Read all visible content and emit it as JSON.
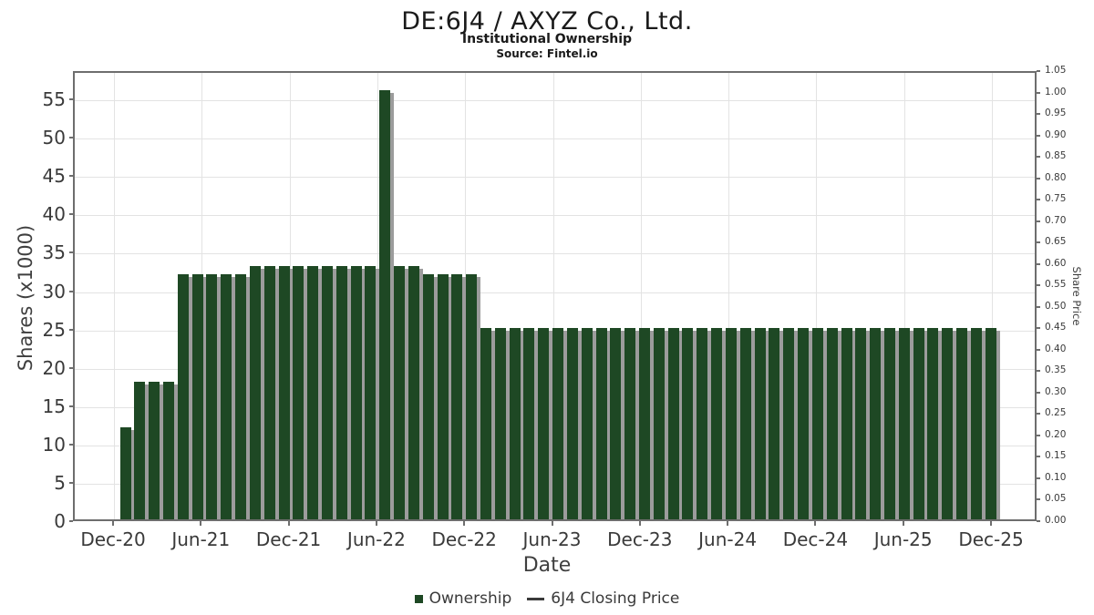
{
  "header": {
    "title": "DE:6J4 / AXYZ Co., Ltd.",
    "subtitle": "Institutional Ownership",
    "source": "Source: Fintel.io"
  },
  "axes": {
    "x_label": "Date",
    "y_left_label": "Shares (x1000)",
    "y_right_label": "Share Price",
    "x_ticks": [
      "Dec-20",
      "Jun-21",
      "Dec-21",
      "Jun-22",
      "Dec-22",
      "Jun-23",
      "Dec-23",
      "Jun-24",
      "Dec-24",
      "Jun-25",
      "Dec-25"
    ],
    "y_left_ticks": [
      0,
      5,
      10,
      15,
      20,
      25,
      30,
      35,
      40,
      45,
      50,
      55
    ],
    "y_right_ticks": [
      "0.00",
      "0.05",
      "0.10",
      "0.15",
      "0.20",
      "0.25",
      "0.30",
      "0.35",
      "0.40",
      "0.45",
      "0.50",
      "0.55",
      "0.60",
      "0.65",
      "0.70",
      "0.75",
      "0.80",
      "0.85",
      "0.90",
      "0.95",
      "1.00",
      "1.05"
    ]
  },
  "legend": {
    "ownership_label": "Ownership",
    "price_label": "6J4 Closing Price"
  },
  "colors": {
    "bar": "#1e4824",
    "bar_shadow": "#9c9c9c",
    "grid": "#e3e3e3",
    "border": "#6e6e6e",
    "text": "#3a3a3a"
  },
  "chart_data": {
    "type": "bar",
    "title": "DE:6J4 / AXYZ Co., Ltd. — Institutional Ownership",
    "xlabel": "Date",
    "ylabel_left": "Shares (x1000)",
    "ylabel_right": "Share Price",
    "ylim_left": [
      0,
      58.7
    ],
    "ylim_right": [
      0,
      1.05
    ],
    "grid": true,
    "legend_position": "bottom-center",
    "x": [
      "Dec-20",
      "Jan-21",
      "Feb-21",
      "Mar-21",
      "Apr-21",
      "May-21",
      "Jun-21",
      "Jul-21",
      "Aug-21",
      "Sep-21",
      "Oct-21",
      "Nov-21",
      "Dec-21",
      "Jan-22",
      "Feb-22",
      "Mar-22",
      "Apr-22",
      "May-22",
      "Jun-22",
      "Jul-22",
      "Aug-22",
      "Sep-22",
      "Oct-22",
      "Nov-22",
      "Dec-22",
      "Jan-23",
      "Feb-23",
      "Mar-23",
      "Apr-23",
      "May-23",
      "Jun-23",
      "Jul-23",
      "Aug-23",
      "Sep-23",
      "Oct-23",
      "Nov-23",
      "Dec-23",
      "Jan-24",
      "Feb-24",
      "Mar-24",
      "Apr-24",
      "May-24",
      "Jun-24",
      "Jul-24",
      "Aug-24",
      "Sep-24",
      "Oct-24",
      "Nov-24",
      "Dec-24",
      "Jan-25",
      "Feb-25",
      "Mar-25",
      "Apr-25",
      "May-25",
      "Jun-25",
      "Jul-25",
      "Aug-25",
      "Sep-25",
      "Oct-25",
      "Nov-25",
      "Dec-25"
    ],
    "series": [
      {
        "name": "Ownership",
        "type": "bar",
        "axis": "left",
        "values": [
          12,
          18,
          18,
          18,
          32,
          32,
          32,
          32,
          32,
          33,
          33,
          33,
          33,
          33,
          33,
          33,
          33,
          33,
          56,
          33,
          33,
          32,
          32,
          32,
          32,
          25,
          25,
          25,
          25,
          25,
          25,
          25,
          25,
          25,
          25,
          25,
          25,
          25,
          25,
          25,
          25,
          25,
          25,
          25,
          25,
          25,
          25,
          25,
          25,
          25,
          25,
          25,
          25,
          25,
          25,
          25,
          25,
          25,
          25,
          25,
          25
        ]
      },
      {
        "name": "6J4 Closing Price",
        "type": "line",
        "axis": "right",
        "values": []
      }
    ]
  }
}
